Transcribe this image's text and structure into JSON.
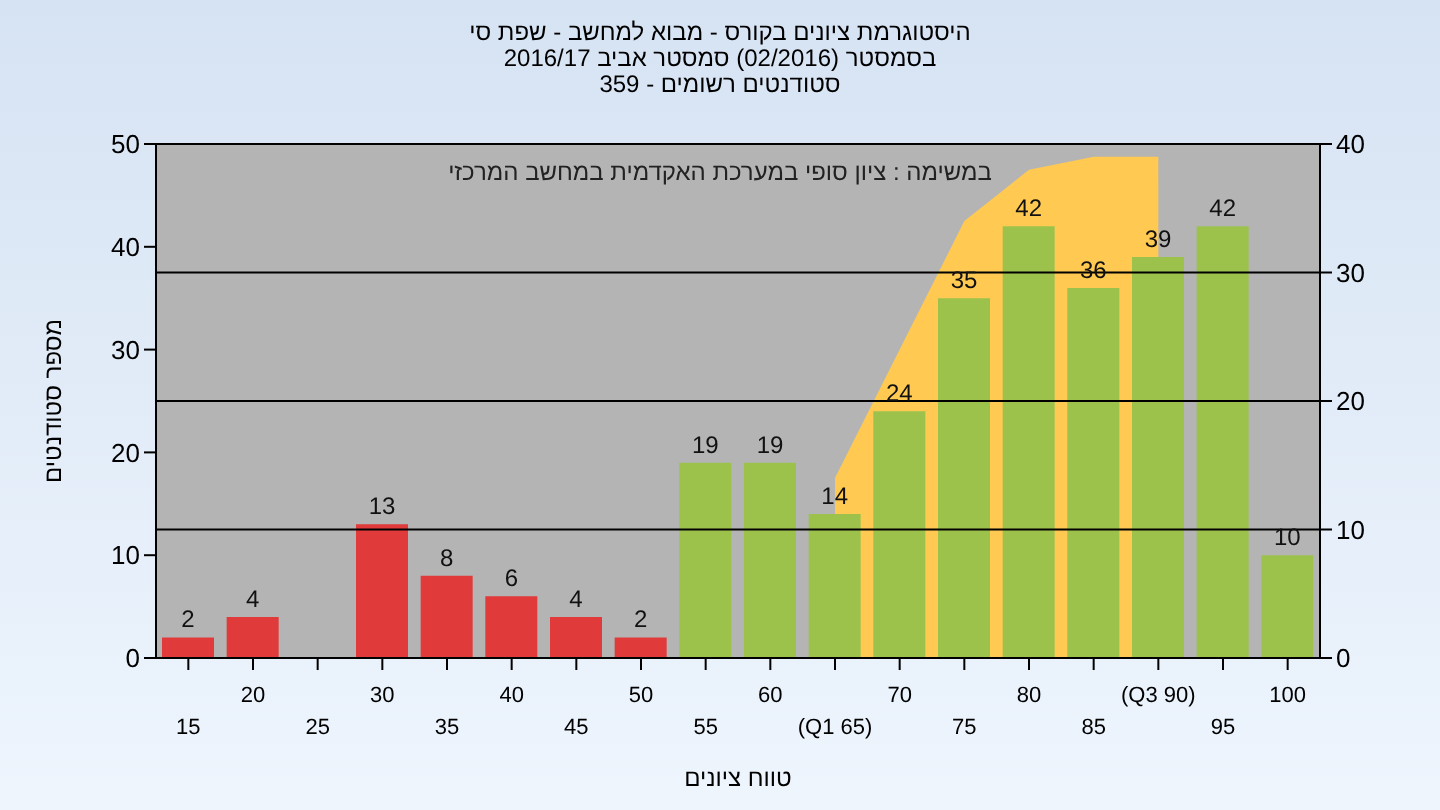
{
  "chart_data": {
    "type": "bar",
    "title": "היסטוגרמת ציונים בקורס - מבוא למחשב - שפת סי",
    "subtitle": "בסמסטר  (02/2016)  סמסטר אביב 2016/17\nסטודנטים רשומים - 359",
    "xlabel": "טווח ציונים",
    "ylabel": "מספר סטודנטים",
    "annotations": [
      "במשימה : ציון סופי במערכת האקדמית במחשב המרכזי"
    ],
    "categories": [
      "15",
      "20",
      "25",
      "30",
      "35",
      "40",
      "45",
      "50",
      "55",
      "60",
      "(Q1 65)",
      "70",
      "75",
      "80",
      "85",
      "(Q3 90)",
      "95",
      "100"
    ],
    "series": [
      {
        "values": [
          2,
          4,
          null,
          13,
          8,
          6,
          4,
          2,
          19,
          19,
          14,
          24,
          35,
          42,
          36,
          39,
          42,
          10
        ],
        "value_labels": [
          "2",
          "4",
          null,
          "13",
          "8",
          "6",
          "4",
          "2",
          "19",
          "19",
          "14",
          "24",
          "35",
          "42",
          "36",
          "39",
          "42",
          "10"
        ],
        "colors": [
          "#e03a3a",
          "#e03a3a",
          "#e03a3a",
          "#e03a3a",
          "#e03a3a",
          "#e03a3a",
          "#e03a3a",
          "#e03a3a",
          "#9dc24c",
          "#9dc24c",
          "#9dc24c",
          "#9dc24c",
          "#9dc24c",
          "#9dc24c",
          "#9dc24c",
          "#9dc24c",
          "#9dc24c",
          "#9dc24c"
        ]
      },
      {
        "type": "area",
        "axis": "y2",
        "color": "#ffc952",
        "values": [
          null,
          null,
          null,
          null,
          null,
          null,
          null,
          null,
          null,
          null,
          14,
          24,
          34,
          38,
          39,
          39,
          null,
          null
        ]
      }
    ],
    "ylim": [
      0,
      50
    ],
    "yticks": [
      0,
      10,
      20,
      30,
      40,
      50
    ],
    "y2lim": [
      0,
      40
    ],
    "y2ticks": [
      0,
      10,
      20,
      30,
      40
    ],
    "grid": true
  }
}
